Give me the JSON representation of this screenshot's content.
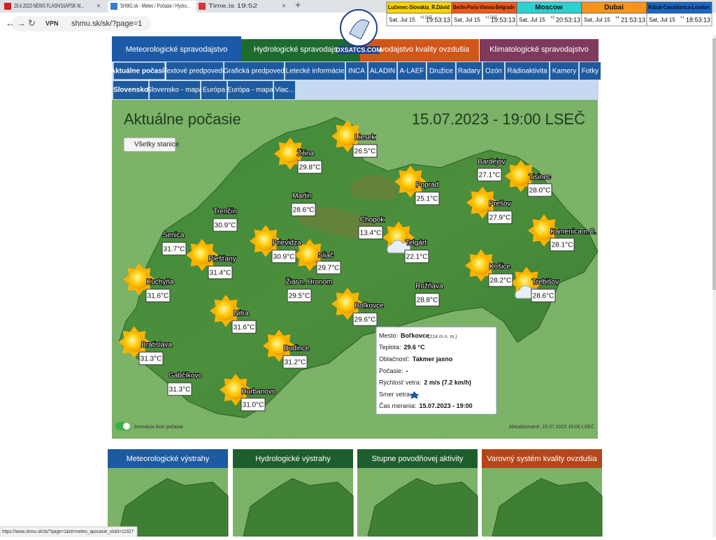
{
  "browser": {
    "tabs": [
      "28.6.2023-NEWS FLASH/16APSK M...",
      "SHMÚ.sk - Meteo / Počasie / Hydro...",
      "Time.is 19:52"
    ],
    "new_tab": "+",
    "address": "shmu.sk/sk/?page=1",
    "status": "https://www.shmu.sk/sk/?page=1&id=meteo_apocasie_sk&ii=11927"
  },
  "world_clock": [
    {
      "city": "Lučenec-Slovakia_R.Dávid",
      "date": "Sat, Jul 15",
      "offset": "+1 DST",
      "time": "19:53:13"
    },
    {
      "city": "Berlin-Paris-Vienna-Belgrade",
      "date": "Sat, Jul 15",
      "offset": "+1 DST",
      "time": "19:53:13"
    },
    {
      "city": "Moscow",
      "date": "Sat, Jul 15",
      "offset": "+3",
      "time": "20:53:13"
    },
    {
      "city": "Dubai",
      "date": "Sat, Jul 15",
      "offset": "+4",
      "time": "21:53:13"
    },
    {
      "city": "Rabat-Casablanca-London",
      "date": "Sat, Jul 15",
      "offset": "+1",
      "time": "18:53:13"
    }
  ],
  "logo": "DXSATCS.COM",
  "main_tabs": [
    "Meteorologické spravodajstvo",
    "Hydrologické spravodajstvo",
    "pravodajstvo kvality ovzdušia",
    "Klimatologické spravodajstvo"
  ],
  "sub_tabs": [
    "Aktuálne počasie",
    "Textové predpovede",
    "Grafická predpoveď",
    "Letecké informácie",
    "INCA",
    "ALADIN",
    "A-LAEF",
    "Družice",
    "Radary",
    "Ozón",
    "Rádioaktivita",
    "Kamery",
    "Fotky"
  ],
  "region_tabs": [
    "Slovensko",
    "Slovensko - mapa",
    "Európa",
    "Európa - mapa",
    "Viac..."
  ],
  "map": {
    "title": "Aktuálne počasie",
    "datetime": "15.07.2023 - 19:00 LSEČ",
    "all_stations": "Všetky stanice",
    "stations": [
      {
        "name": "Liesek",
        "temp": "26.5°C"
      },
      {
        "name": "Žilina",
        "temp": "29.8°C"
      },
      {
        "name": "Martin",
        "temp": "28.6°C"
      },
      {
        "name": "Trenčín",
        "temp": "30.9°C"
      },
      {
        "name": "Senica",
        "temp": "31.7°C"
      },
      {
        "name": "Piešťany",
        "temp": "31.4°C"
      },
      {
        "name": "Prievidza",
        "temp": "30.9°C"
      },
      {
        "name": "Sliač",
        "temp": "29.7°C"
      },
      {
        "name": "Chopok",
        "temp": "13.4°C"
      },
      {
        "name": "Telgárt",
        "temp": "22.1°C"
      },
      {
        "name": "Poprad",
        "temp": "25.1°C"
      },
      {
        "name": "Bardejov",
        "temp": "27.1°C"
      },
      {
        "name": "Tisinec",
        "temp": "28.0°C"
      },
      {
        "name": "Prešov",
        "temp": "27.9°C"
      },
      {
        "name": "Kamenica n.C.",
        "temp": "28.1°C"
      },
      {
        "name": "Košice",
        "temp": "28.2°C"
      },
      {
        "name": "Trebišov",
        "temp": "28.6°C"
      },
      {
        "name": "Rožňava",
        "temp": "28.8°C"
      },
      {
        "name": "Žiar n. Hronom",
        "temp": "29.5°C"
      },
      {
        "name": "Boľkovce",
        "temp": "29.6°C"
      },
      {
        "name": "Kuchyňa",
        "temp": "31.6°C"
      },
      {
        "name": "Nitra",
        "temp": "31.6°C"
      },
      {
        "name": "Dudince",
        "temp": "31.2°C"
      },
      {
        "name": "Bratislava",
        "temp": "31.3°C"
      },
      {
        "name": "Gabčíkovo",
        "temp": "31.3°C"
      },
      {
        "name": "Hurbanovo",
        "temp": "31.0°C"
      }
    ],
    "popup": [
      {
        "label": "Mesto:",
        "value": "Boľkovce",
        "extra": "(214 m n. m.)"
      },
      {
        "label": "Teplota:",
        "value": "29.6 °C"
      },
      {
        "label": "Oblačnosť:",
        "value": "Takmer jasno"
      },
      {
        "label": "Počasie:",
        "value": "-"
      },
      {
        "label": "Rýchlosť vetra:",
        "value": "2 m/s (7.2 km/h)"
      },
      {
        "label": "Smer vetra:"
      },
      {
        "label": "Čas merania:",
        "value": "15.07.2023 - 19:00"
      }
    ],
    "animation_toggle": "Animácia ikon počasia",
    "updated": "Aktualizované: 15.07.2023 19:06 LSEČ"
  },
  "cards": [
    "Meteorologické výstrahy",
    "Hydrologické výstrahy",
    "Stupne povodňovej aktivity",
    "Varovný systém kvality ovzdušia"
  ]
}
